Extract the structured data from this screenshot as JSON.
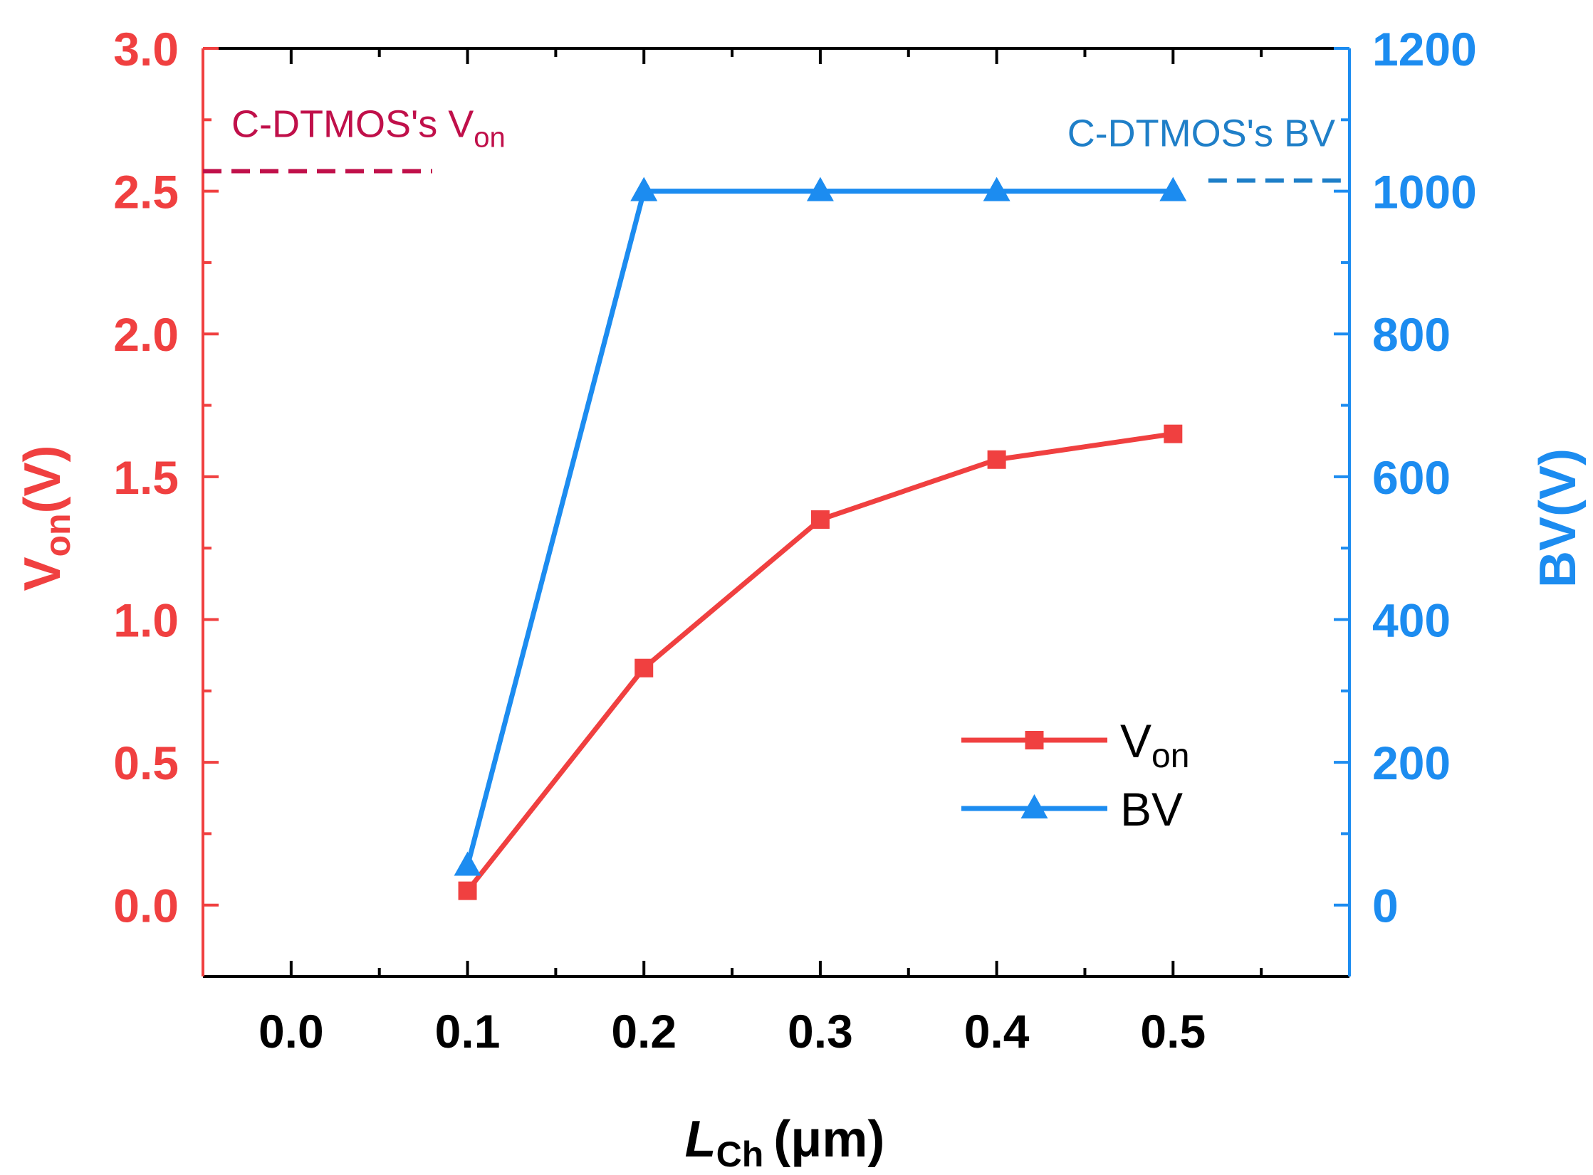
{
  "chart_data": {
    "type": "line",
    "xlabel": {
      "main": "L",
      "sub": "Ch",
      "unit": "(μm)"
    },
    "ylabel_left": {
      "main": "V",
      "sub": "on",
      "unit": "(V)"
    },
    "ylabel_right": "BV(V)",
    "xlim": [
      -0.05,
      0.6
    ],
    "ylim_left": [
      -0.25,
      3.0
    ],
    "ylim_right": [
      -100,
      1200
    ],
    "x_ticks": [
      "0.0",
      "0.1",
      "0.2",
      "0.3",
      "0.4",
      "0.5"
    ],
    "y_left_ticks": [
      "0.0",
      "0.5",
      "1.0",
      "1.5",
      "2.0",
      "2.5",
      "3.0"
    ],
    "y_right_ticks": [
      "0",
      "200",
      "400",
      "600",
      "800",
      "1000",
      "1200"
    ],
    "series": [
      {
        "name": "V",
        "name_sub": "on",
        "axis": "left",
        "color": "#f04040",
        "marker": "square",
        "x": [
          0.1,
          0.2,
          0.3,
          0.4,
          0.5
        ],
        "y": [
          0.05,
          0.83,
          1.35,
          1.56,
          1.65
        ]
      },
      {
        "name": "BV",
        "name_sub": "",
        "axis": "right",
        "color": "#1c8cf0",
        "marker": "triangle",
        "x": [
          0.1,
          0.2,
          0.3,
          0.4,
          0.5
        ],
        "y": [
          55,
          1000,
          1000,
          1000,
          1000
        ]
      }
    ],
    "reference_lines": [
      {
        "label": "C-DTMOS's V",
        "label_sub": "on",
        "axis": "left",
        "value": 2.57,
        "x_from": -0.05,
        "x_to": 0.08,
        "color": "#c0104a",
        "style": "dashed"
      },
      {
        "label": "C-DTMOS's BV",
        "label_sub": "",
        "axis": "right",
        "value": 1015,
        "x_from": 0.52,
        "x_to": 0.6,
        "color": "#1f7fc8",
        "style": "dashed"
      }
    ],
    "legend_position": "lower-right",
    "grid": false,
    "colors": {
      "left_axis": "#f04040",
      "right_axis": "#1c8cf0",
      "frame": "#000000"
    }
  }
}
